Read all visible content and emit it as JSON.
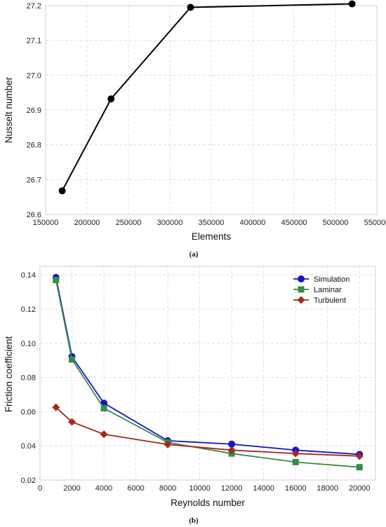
{
  "chart_data": [
    {
      "type": "line",
      "title": "",
      "xlabel": "Elements",
      "ylabel": "Nusselt number",
      "caption": "(a)",
      "xlim": [
        150000,
        550000
      ],
      "ylim": [
        26.6,
        27.2
      ],
      "xticks": [
        "150000",
        "200000",
        "250000",
        "300000",
        "350000",
        "400000",
        "450000",
        "500000",
        "550000"
      ],
      "yticks": [
        "26.6",
        "26.7",
        "26.8",
        "26.9",
        "27.0",
        "27.1",
        "27.2"
      ],
      "grid": true,
      "series": [
        {
          "x": [
            170000,
            229000,
            325000,
            520000
          ],
          "y": [
            26.668,
            26.932,
            27.195,
            27.205
          ],
          "color": "#000000",
          "marker": "circle"
        }
      ]
    },
    {
      "type": "line",
      "title": "",
      "xlabel": "Reynolds number",
      "ylabel": "Friction coefficient",
      "caption": "(b)",
      "xlim": [
        0,
        21000
      ],
      "ylim": [
        0.02,
        0.145
      ],
      "xticks": [
        "0",
        "2000",
        "4000",
        "6000",
        "8000",
        "10000",
        "12000",
        "14000",
        "16000",
        "18000",
        "20000"
      ],
      "yticks": [
        "0.02",
        "0.04",
        "0.06",
        "0.08",
        "0.10",
        "0.12",
        "0.14"
      ],
      "grid": true,
      "legend_position": "top-right",
      "x": [
        1000,
        2000,
        4000,
        8000,
        12000,
        16000,
        20000
      ],
      "series": [
        {
          "name": "Simulation",
          "x": [
            1000,
            2000,
            4000,
            8000,
            12000,
            16000,
            20000
          ],
          "values": [
            0.1385,
            0.0922,
            0.065,
            0.043,
            0.041,
            0.0375,
            0.035
          ],
          "color": "#1515c8",
          "marker": "circle"
        },
        {
          "name": "Laminar",
          "x": [
            1000,
            2000,
            4000,
            8000,
            12000,
            16000,
            20000
          ],
          "values": [
            0.137,
            0.0905,
            0.062,
            0.042,
            0.0355,
            0.0305,
            0.0275
          ],
          "color": "#3a8a4a",
          "marker": "square"
        },
        {
          "name": "Turbulent",
          "x": [
            1000,
            2000,
            4000,
            8000,
            12000,
            16000,
            20000
          ],
          "values": [
            0.0625,
            0.054,
            0.0468,
            0.0408,
            0.0375,
            0.0355,
            0.034
          ],
          "color": "#a52a1a",
          "marker": "diamond"
        }
      ]
    }
  ]
}
